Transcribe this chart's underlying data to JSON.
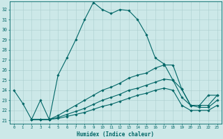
{
  "xlabel": "Humidex (Indice chaleur)",
  "bg_color": "#cce8e8",
  "grid_color": "#aacece",
  "line_color": "#006666",
  "xlim": [
    -0.5,
    23.5
  ],
  "ylim": [
    20.7,
    32.8
  ],
  "yticks": [
    21,
    22,
    23,
    24,
    25,
    26,
    27,
    28,
    29,
    30,
    31,
    32
  ],
  "xticks": [
    0,
    1,
    2,
    3,
    4,
    5,
    6,
    7,
    8,
    9,
    10,
    11,
    12,
    13,
    14,
    15,
    16,
    17,
    18,
    19,
    20,
    21,
    22,
    23
  ],
  "line1_x": [
    0,
    1,
    2,
    3,
    4,
    5,
    6,
    7,
    8,
    9,
    10,
    11,
    12,
    13,
    14,
    15,
    16,
    17,
    18,
    19,
    20,
    21,
    22,
    23
  ],
  "line1_y": [
    24.0,
    22.7,
    21.1,
    23.0,
    21.1,
    25.5,
    27.2,
    29.0,
    31.0,
    32.7,
    32.0,
    31.6,
    32.0,
    31.9,
    31.0,
    29.5,
    27.2,
    26.6,
    25.0,
    24.1,
    22.5,
    22.5,
    23.5,
    23.5
  ],
  "line2full_x": [
    2,
    3,
    4,
    5,
    6,
    7,
    8,
    9,
    10,
    11,
    12,
    13,
    14,
    15,
    16,
    17,
    18,
    19,
    20,
    21,
    22,
    23
  ],
  "line2full_y": [
    21.1,
    21.1,
    21.1,
    21.5,
    22.0,
    22.5,
    23.0,
    23.5,
    24.0,
    24.3,
    24.7,
    25.2,
    25.5,
    25.7,
    26.2,
    26.5,
    26.5,
    24.1,
    22.5,
    22.5,
    22.5,
    23.5
  ],
  "line3full_x": [
    2,
    3,
    4,
    5,
    6,
    7,
    8,
    9,
    10,
    11,
    12,
    13,
    14,
    15,
    16,
    17,
    18,
    19,
    20,
    21,
    22,
    23
  ],
  "line3full_y": [
    21.1,
    21.1,
    21.1,
    21.3,
    21.6,
    21.9,
    22.2,
    22.6,
    23.0,
    23.3,
    23.6,
    24.0,
    24.2,
    24.5,
    24.8,
    25.1,
    25.0,
    23.3,
    22.5,
    22.3,
    22.3,
    23.0
  ],
  "line4full_x": [
    2,
    3,
    4,
    5,
    6,
    7,
    8,
    9,
    10,
    11,
    12,
    13,
    14,
    15,
    16,
    17,
    18,
    19,
    20,
    21,
    22,
    23
  ],
  "line4full_y": [
    21.1,
    21.1,
    21.1,
    21.2,
    21.4,
    21.6,
    21.8,
    22.1,
    22.4,
    22.6,
    22.9,
    23.2,
    23.5,
    23.7,
    24.0,
    24.2,
    24.0,
    22.5,
    22.0,
    22.0,
    22.0,
    22.5
  ],
  "marker": "D",
  "markersize": 1.8,
  "linewidth": 0.8
}
